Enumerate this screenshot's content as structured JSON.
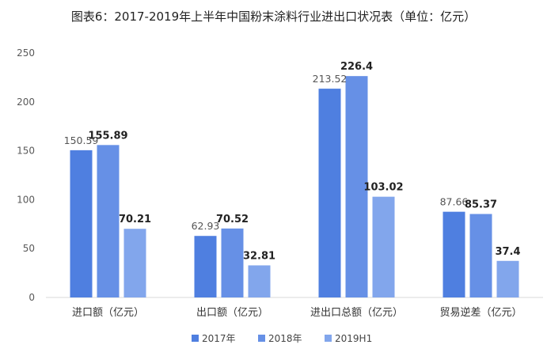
{
  "chart_data": {
    "type": "bar",
    "title": "图表6：2017-2019年上半年中国粉末涂料行业进出口状况表（单位：亿元）",
    "categories": [
      "进口额（亿元）",
      "出口额（亿元）",
      "进出口总额（亿元）",
      "贸易逆差（亿元）"
    ],
    "series": [
      {
        "name": "2017年",
        "values": [
          150.59,
          62.93,
          213.52,
          87.66
        ],
        "color": "#4F7FE0"
      },
      {
        "name": "2018年",
        "values": [
          155.89,
          70.52,
          226.4,
          85.37
        ],
        "color": "#6690E6"
      },
      {
        "name": "2019H1",
        "values": [
          70.21,
          32.81,
          103.02,
          37.4
        ],
        "color": "#82A6EC"
      }
    ],
    "data_labels": [
      [
        "150.59",
        "62.93",
        "213.52",
        "87.66"
      ],
      [
        "155.89",
        "70.52",
        "226.4",
        "85.37"
      ],
      [
        "70.21",
        "32.81",
        "103.02",
        "37.4"
      ]
    ],
    "ylim": [
      0,
      250
    ],
    "yticks": [
      0,
      50,
      100,
      150,
      200,
      250
    ],
    "grid": false,
    "legend_position": "bottom",
    "xlabel": "",
    "ylabel": ""
  }
}
